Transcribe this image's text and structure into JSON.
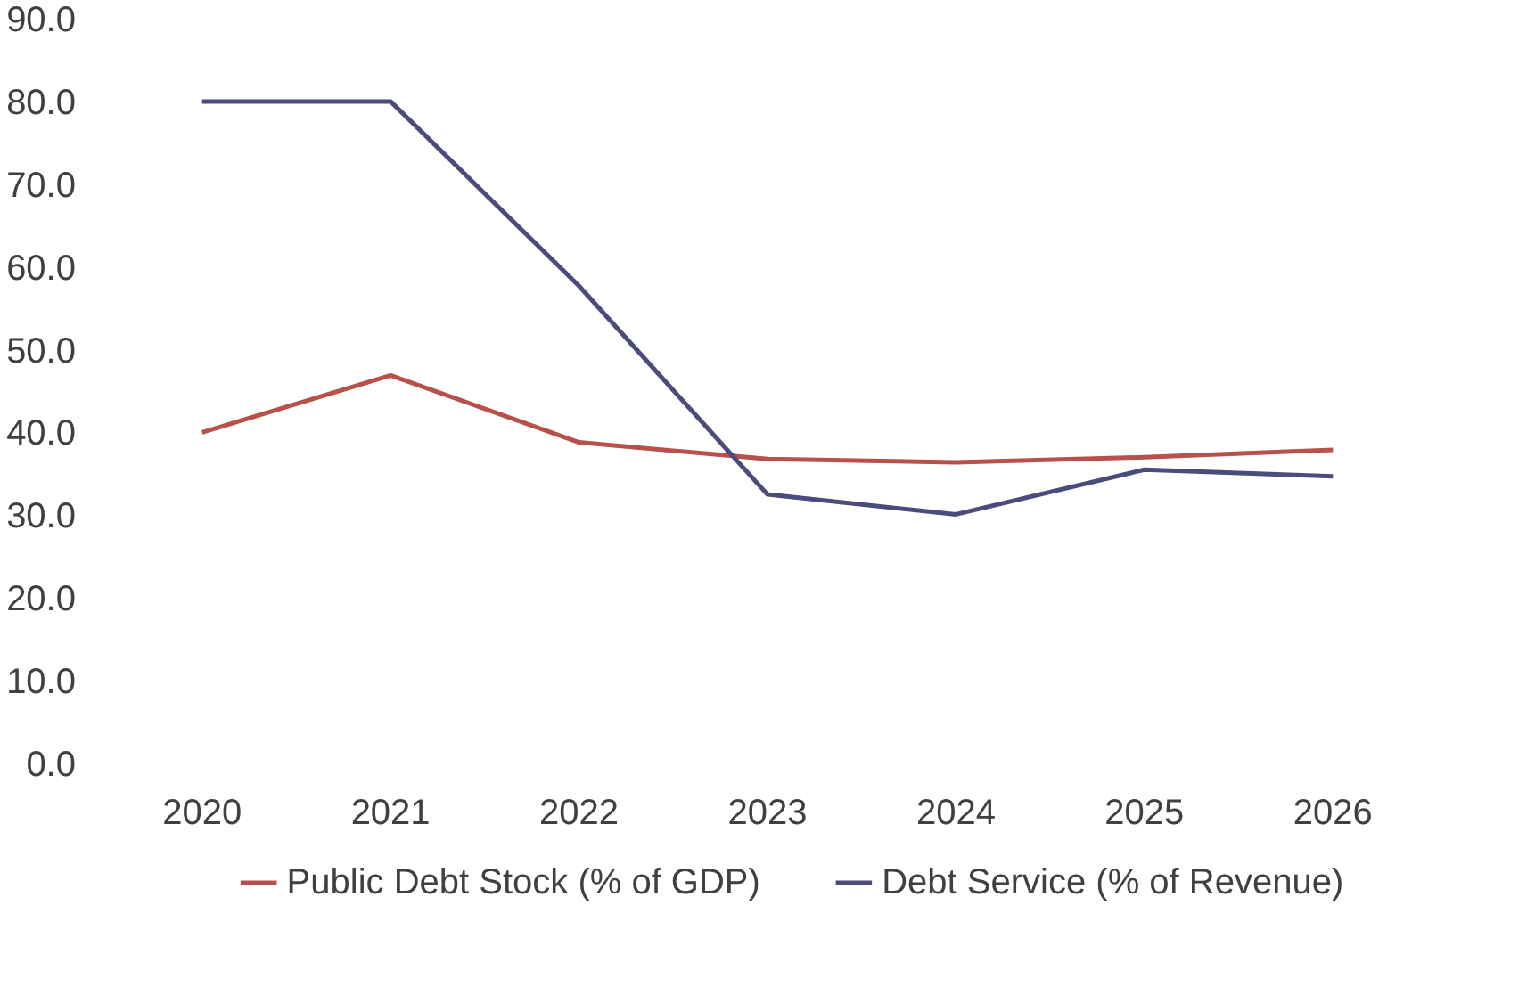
{
  "chart_data": {
    "type": "line",
    "categories": [
      "2020",
      "2021",
      "2022",
      "2023",
      "2024",
      "2025",
      "2026"
    ],
    "series": [
      {
        "name": "Public Debt Stock (% of GDP)",
        "color": "#b8514b",
        "values": [
          40.0,
          46.9,
          38.8,
          36.8,
          36.4,
          37.0,
          37.9
        ]
      },
      {
        "name": "Debt Service (% of Revenue)",
        "color": "#4b4b7c",
        "values": [
          80.0,
          80.0,
          57.7,
          32.5,
          30.1,
          35.5,
          34.7
        ]
      }
    ],
    "ylim": [
      0,
      90
    ],
    "yticks": [
      {
        "value": 0,
        "label": "0.0"
      },
      {
        "value": 10,
        "label": "10.0"
      },
      {
        "value": 20,
        "label": "20.0"
      },
      {
        "value": 30,
        "label": "30.0"
      },
      {
        "value": 40,
        "label": "40.0"
      },
      {
        "value": 50,
        "label": "50.0"
      },
      {
        "value": 60,
        "label": "60.0"
      },
      {
        "value": 70,
        "label": "70.0"
      },
      {
        "value": 80,
        "label": "80.0"
      },
      {
        "value": 90,
        "label": "90.0"
      }
    ],
    "grid": false,
    "legend": "bottom",
    "marker": "none",
    "line_style": "solid"
  }
}
